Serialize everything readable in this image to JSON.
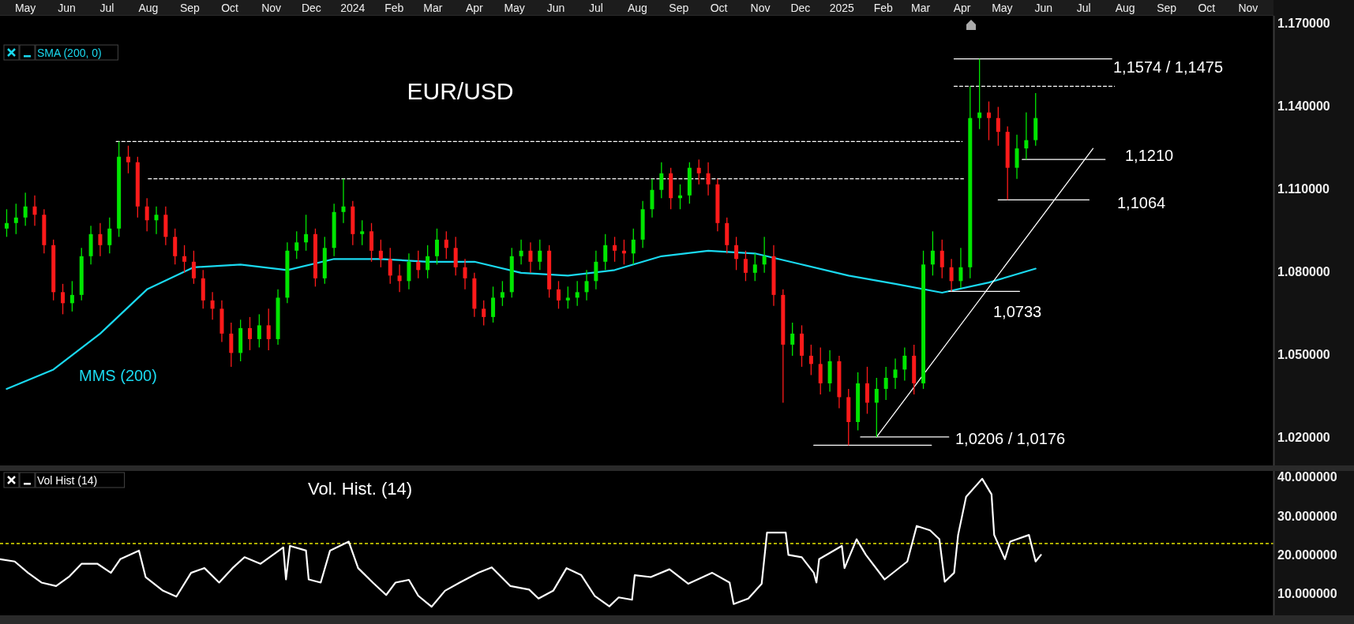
{
  "chart_data": [
    {
      "type": "candlestick",
      "title": "EUR/USD",
      "x": [
        "2023-04-17",
        "2023-04-24",
        "2023-05-01",
        "2023-05-08",
        "2023-05-15",
        "2023-05-22",
        "2023-05-29",
        "2023-06-05",
        "2023-06-12",
        "2023-06-19",
        "2023-06-26",
        "2023-07-03",
        "2023-07-10",
        "2023-07-17",
        "2023-07-24",
        "2023-07-31",
        "2023-08-07",
        "2023-08-14",
        "2023-08-21",
        "2023-08-28",
        "2023-09-04",
        "2023-09-11",
        "2023-09-18",
        "2023-09-25",
        "2023-10-02",
        "2023-10-09",
        "2023-10-16",
        "2023-10-23",
        "2023-10-30",
        "2023-11-06",
        "2023-11-13",
        "2023-11-20",
        "2023-11-27",
        "2023-12-04",
        "2023-12-11",
        "2023-12-18",
        "2023-12-25",
        "2024-01-01",
        "2024-01-08",
        "2024-01-15",
        "2024-01-22",
        "2024-01-29",
        "2024-02-05",
        "2024-02-12",
        "2024-02-19",
        "2024-02-26",
        "2024-03-04",
        "2024-03-11",
        "2024-03-18",
        "2024-03-25",
        "2024-04-01",
        "2024-04-08",
        "2024-04-15",
        "2024-04-22",
        "2024-04-29",
        "2024-05-06",
        "2024-05-13",
        "2024-05-20",
        "2024-05-27",
        "2024-06-03",
        "2024-06-10",
        "2024-06-17",
        "2024-06-24",
        "2024-07-01",
        "2024-07-08",
        "2024-07-15",
        "2024-07-22",
        "2024-07-29",
        "2024-08-05",
        "2024-08-12",
        "2024-08-19",
        "2024-08-26",
        "2024-09-02",
        "2024-09-09",
        "2024-09-16",
        "2024-09-23",
        "2024-09-30",
        "2024-10-07",
        "2024-10-14",
        "2024-10-21",
        "2024-10-28",
        "2024-11-04",
        "2024-11-11",
        "2024-11-18",
        "2024-11-25",
        "2024-12-02",
        "2024-12-09",
        "2024-12-16",
        "2024-12-23",
        "2024-12-30",
        "2025-01-06",
        "2025-01-13",
        "2025-01-20",
        "2025-01-27",
        "2025-02-03",
        "2025-02-10",
        "2025-02-17",
        "2025-02-24",
        "2025-03-03",
        "2025-03-10",
        "2025-03-17",
        "2025-03-24",
        "2025-03-31",
        "2025-04-07",
        "2025-04-14",
        "2025-04-21",
        "2025-04-28",
        "2025-05-05",
        "2025-05-12",
        "2025-05-19",
        "2025-05-26"
      ],
      "ohlc": [
        [
          1.096,
          1.103,
          1.093,
          1.098
        ],
        [
          1.098,
          1.105,
          1.094,
          1.1
        ],
        [
          1.1,
          1.109,
          1.097,
          1.104
        ],
        [
          1.104,
          1.108,
          1.097,
          1.101
        ],
        [
          1.101,
          1.103,
          1.087,
          1.09
        ],
        [
          1.09,
          1.092,
          1.07,
          1.073
        ],
        [
          1.073,
          1.076,
          1.065,
          1.069
        ],
        [
          1.069,
          1.077,
          1.066,
          1.072
        ],
        [
          1.072,
          1.089,
          1.07,
          1.086
        ],
        [
          1.086,
          1.097,
          1.083,
          1.094
        ],
        [
          1.094,
          1.098,
          1.086,
          1.09
        ],
        [
          1.09,
          1.1,
          1.087,
          1.096
        ],
        [
          1.096,
          1.1275,
          1.093,
          1.122
        ],
        [
          1.122,
          1.126,
          1.116,
          1.12
        ],
        [
          1.12,
          1.122,
          1.1,
          1.104
        ],
        [
          1.104,
          1.107,
          1.095,
          1.099
        ],
        [
          1.099,
          1.104,
          1.094,
          1.101
        ],
        [
          1.101,
          1.104,
          1.09,
          1.093
        ],
        [
          1.093,
          1.096,
          1.083,
          1.086
        ],
        [
          1.086,
          1.09,
          1.08,
          1.084
        ],
        [
          1.084,
          1.088,
          1.076,
          1.078
        ],
        [
          1.078,
          1.081,
          1.067,
          1.07
        ],
        [
          1.07,
          1.073,
          1.063,
          1.067
        ],
        [
          1.067,
          1.07,
          1.055,
          1.058
        ],
        [
          1.058,
          1.062,
          1.046,
          1.051
        ],
        [
          1.051,
          1.063,
          1.048,
          1.06
        ],
        [
          1.06,
          1.064,
          1.052,
          1.056
        ],
        [
          1.056,
          1.065,
          1.053,
          1.061
        ],
        [
          1.061,
          1.067,
          1.052,
          1.056
        ],
        [
          1.056,
          1.074,
          1.054,
          1.071
        ],
        [
          1.071,
          1.091,
          1.069,
          1.088
        ],
        [
          1.088,
          1.095,
          1.085,
          1.091
        ],
        [
          1.091,
          1.101,
          1.088,
          1.094
        ],
        [
          1.094,
          1.096,
          1.075,
          1.078
        ],
        [
          1.078,
          1.093,
          1.076,
          1.089
        ],
        [
          1.089,
          1.105,
          1.086,
          1.102
        ],
        [
          1.102,
          1.114,
          1.098,
          1.104
        ],
        [
          1.104,
          1.106,
          1.09,
          1.094
        ],
        [
          1.094,
          1.099,
          1.09,
          1.095
        ],
        [
          1.095,
          1.098,
          1.084,
          1.088
        ],
        [
          1.088,
          1.092,
          1.082,
          1.085
        ],
        [
          1.085,
          1.089,
          1.076,
          1.079
        ],
        [
          1.079,
          1.083,
          1.073,
          1.077
        ],
        [
          1.077,
          1.087,
          1.074,
          1.084
        ],
        [
          1.084,
          1.088,
          1.078,
          1.081
        ],
        [
          1.081,
          1.09,
          1.078,
          1.086
        ],
        [
          1.086,
          1.096,
          1.083,
          1.092
        ],
        [
          1.092,
          1.095,
          1.085,
          1.089
        ],
        [
          1.089,
          1.093,
          1.079,
          1.082
        ],
        [
          1.082,
          1.085,
          1.074,
          1.078
        ],
        [
          1.078,
          1.08,
          1.064,
          1.067
        ],
        [
          1.067,
          1.07,
          1.061,
          1.064
        ],
        [
          1.064,
          1.075,
          1.062,
          1.071
        ],
        [
          1.071,
          1.077,
          1.068,
          1.073
        ],
        [
          1.073,
          1.089,
          1.071,
          1.086
        ],
        [
          1.086,
          1.092,
          1.083,
          1.088
        ],
        [
          1.088,
          1.091,
          1.08,
          1.084
        ],
        [
          1.084,
          1.092,
          1.081,
          1.088
        ],
        [
          1.088,
          1.09,
          1.071,
          1.074
        ],
        [
          1.074,
          1.077,
          1.067,
          1.07
        ],
        [
          1.07,
          1.075,
          1.067,
          1.071
        ],
        [
          1.071,
          1.077,
          1.068,
          1.073
        ],
        [
          1.073,
          1.081,
          1.07,
          1.077
        ],
        [
          1.077,
          1.088,
          1.074,
          1.084
        ],
        [
          1.084,
          1.094,
          1.081,
          1.09
        ],
        [
          1.09,
          1.093,
          1.084,
          1.088
        ],
        [
          1.088,
          1.092,
          1.083,
          1.087
        ],
        [
          1.087,
          1.096,
          1.083,
          1.092
        ],
        [
          1.092,
          1.106,
          1.089,
          1.103
        ],
        [
          1.103,
          1.114,
          1.1,
          1.11
        ],
        [
          1.11,
          1.12,
          1.107,
          1.116
        ],
        [
          1.116,
          1.118,
          1.103,
          1.107
        ],
        [
          1.107,
          1.112,
          1.103,
          1.108
        ],
        [
          1.108,
          1.12,
          1.105,
          1.118
        ],
        [
          1.118,
          1.121,
          1.112,
          1.116
        ],
        [
          1.116,
          1.12,
          1.108,
          1.112
        ],
        [
          1.112,
          1.114,
          1.095,
          1.098
        ],
        [
          1.098,
          1.1,
          1.087,
          1.09
        ],
        [
          1.09,
          1.093,
          1.081,
          1.085
        ],
        [
          1.085,
          1.088,
          1.077,
          1.08
        ],
        [
          1.08,
          1.087,
          1.077,
          1.083
        ],
        [
          1.083,
          1.093,
          1.08,
          1.086
        ],
        [
          1.086,
          1.09,
          1.068,
          1.072
        ],
        [
          1.072,
          1.074,
          1.033,
          1.054
        ],
        [
          1.054,
          1.062,
          1.05,
          1.058
        ],
        [
          1.058,
          1.061,
          1.046,
          1.05
        ],
        [
          1.05,
          1.054,
          1.043,
          1.047
        ],
        [
          1.047,
          1.053,
          1.036,
          1.04
        ],
        [
          1.04,
          1.052,
          1.037,
          1.048
        ],
        [
          1.048,
          1.05,
          1.031,
          1.035
        ],
        [
          1.035,
          1.038,
          1.0176,
          1.026
        ],
        [
          1.026,
          1.044,
          1.023,
          1.04
        ],
        [
          1.04,
          1.046,
          1.029,
          1.033
        ],
        [
          1.033,
          1.042,
          1.0206,
          1.038
        ],
        [
          1.038,
          1.046,
          1.034,
          1.042
        ],
        [
          1.042,
          1.049,
          1.038,
          1.045
        ],
        [
          1.045,
          1.053,
          1.041,
          1.05
        ],
        [
          1.05,
          1.054,
          1.036,
          1.04
        ],
        [
          1.04,
          1.088,
          1.038,
          1.083
        ],
        [
          1.083,
          1.095,
          1.079,
          1.088
        ],
        [
          1.088,
          1.092,
          1.078,
          1.082
        ],
        [
          1.082,
          1.085,
          1.0733,
          1.077
        ],
        [
          1.077,
          1.089,
          1.0745,
          1.082
        ],
        [
          1.082,
          1.1475,
          1.078,
          1.136
        ],
        [
          1.136,
          1.1574,
          1.132,
          1.138
        ],
        [
          1.138,
          1.142,
          1.128,
          1.136
        ],
        [
          1.136,
          1.14,
          1.126,
          1.131
        ],
        [
          1.131,
          1.133,
          1.1064,
          1.118
        ],
        [
          1.118,
          1.13,
          1.114,
          1.125
        ],
        [
          1.125,
          1.138,
          1.121,
          1.128
        ],
        [
          1.128,
          1.145,
          1.126,
          1.136
        ]
      ],
      "series": [
        {
          "type": "line",
          "name": "SMA (200, 0)",
          "color": "#1ad9f0",
          "x": [
            "2023-04-17",
            "2023-05-22",
            "2023-06-26",
            "2023-07-31",
            "2023-09-04",
            "2023-10-09",
            "2023-11-13",
            "2023-12-18",
            "2024-01-22",
            "2024-02-26",
            "2024-04-01",
            "2024-05-06",
            "2024-06-10",
            "2024-07-15",
            "2024-08-19",
            "2024-09-23",
            "2024-10-28",
            "2024-12-02",
            "2025-01-06",
            "2025-02-10",
            "2025-03-17",
            "2025-04-21",
            "2025-05-26"
          ],
          "values": [
            1.038,
            1.045,
            1.058,
            1.074,
            1.082,
            1.083,
            1.081,
            1.085,
            1.085,
            1.084,
            1.084,
            1.08,
            1.079,
            1.081,
            1.086,
            1.088,
            1.087,
            1.083,
            1.079,
            1.076,
            1.0728,
            1.0765,
            1.0815
          ]
        },
        {
          "type": "line",
          "color": "#ffffff",
          "x": [
            "2025-03-26",
            "2025-07-22"
          ],
          "values": [
            1.1574,
            1.1574
          ]
        },
        {
          "type": "line",
          "color": "#ffffff",
          "line_style": "dashed",
          "x": [
            "2025-03-26",
            "2025-07-24"
          ],
          "values": [
            1.1475,
            1.1475
          ]
        },
        {
          "type": "line",
          "color": "#ffffff",
          "line_style": "dashed",
          "x": [
            "2023-07-08",
            "2025-04-01"
          ],
          "values": [
            1.1275,
            1.1275
          ]
        },
        {
          "type": "line",
          "color": "#ffffff",
          "line_style": "dashed",
          "x": [
            "2023-08-01",
            "2025-04-02"
          ],
          "values": [
            1.114,
            1.114
          ]
        },
        {
          "type": "line",
          "color": "#ffffff",
          "x": [
            "2025-05-16",
            "2025-07-17"
          ],
          "values": [
            1.121,
            1.121
          ]
        },
        {
          "type": "line",
          "color": "#ffffff",
          "x": [
            "2025-04-28",
            "2025-07-05"
          ],
          "values": [
            1.1064,
            1.1064
          ]
        },
        {
          "type": "line",
          "color": "#ffffff",
          "x": [
            "2025-03-22",
            "2025-05-14"
          ],
          "values": [
            1.0733,
            1.0733
          ]
        },
        {
          "type": "line",
          "color": "#ffffff",
          "x": [
            "2024-12-11",
            "2025-03-09"
          ],
          "values": [
            1.0176,
            1.0176
          ]
        },
        {
          "type": "line",
          "color": "#ffffff",
          "x": [
            "2025-01-15",
            "2025-03-22"
          ],
          "values": [
            1.0206,
            1.0206
          ]
        },
        {
          "type": "line",
          "color": "#ffffff",
          "x": [
            "2025-01-27",
            "2025-07-08"
          ],
          "values": [
            1.0206,
            1.125
          ]
        }
      ],
      "annotations": [
        "1,1574 / 1,1475",
        "1,1210",
        "1,1064",
        "1,0733",
        "1,0206 / 1,0176",
        "MMS (200)"
      ],
      "xlim": [
        "2023-04-12",
        "2025-11-20"
      ],
      "xticks": [
        {
          "value": "2023-05-01",
          "label": "May"
        },
        {
          "value": "2023-06-01",
          "label": "Jun"
        },
        {
          "value": "2023-07-01",
          "label": "Jul"
        },
        {
          "value": "2023-08-01",
          "label": "Aug"
        },
        {
          "value": "2023-09-01",
          "label": "Sep"
        },
        {
          "value": "2023-10-01",
          "label": "Oct"
        },
        {
          "value": "2023-11-01",
          "label": "Nov"
        },
        {
          "value": "2023-12-01",
          "label": "Dec"
        },
        {
          "value": "2024-01-01",
          "label": "2024"
        },
        {
          "value": "2024-02-01",
          "label": "Feb"
        },
        {
          "value": "2024-03-01",
          "label": "Mar"
        },
        {
          "value": "2024-04-01",
          "label": "Apr"
        },
        {
          "value": "2024-05-01",
          "label": "May"
        },
        {
          "value": "2024-06-01",
          "label": "Jun"
        },
        {
          "value": "2024-07-01",
          "label": "Jul"
        },
        {
          "value": "2024-08-01",
          "label": "Aug"
        },
        {
          "value": "2024-09-01",
          "label": "Sep"
        },
        {
          "value": "2024-10-01",
          "label": "Oct"
        },
        {
          "value": "2024-11-01",
          "label": "Nov"
        },
        {
          "value": "2024-12-01",
          "label": "Dec"
        },
        {
          "value": "2025-01-01",
          "label": "2025"
        },
        {
          "value": "2025-02-01",
          "label": "Feb"
        },
        {
          "value": "2025-03-01",
          "label": "Mar"
        },
        {
          "value": "2025-04-01",
          "label": "Apr"
        },
        {
          "value": "2025-05-01",
          "label": "May"
        },
        {
          "value": "2025-06-01",
          "label": "Jun"
        },
        {
          "value": "2025-07-01",
          "label": "Jul"
        },
        {
          "value": "2025-08-01",
          "label": "Aug"
        },
        {
          "value": "2025-09-01",
          "label": "Sep"
        },
        {
          "value": "2025-10-01",
          "label": "Oct"
        },
        {
          "value": "2025-11-01",
          "label": "Nov"
        }
      ],
      "ylim": [
        1.0103,
        1.173
      ],
      "yticks": [
        {
          "value": 1.17,
          "label": "1.170000"
        },
        {
          "value": 1.14,
          "label": "1.140000"
        },
        {
          "value": 1.11,
          "label": "1.110000"
        },
        {
          "value": 1.08,
          "label": "1.080000"
        },
        {
          "value": 1.05,
          "label": "1.050000"
        },
        {
          "value": 1.02,
          "label": "1.020000"
        }
      ],
      "legend": "top left"
    },
    {
      "type": "line",
      "title": "Vol. Hist. (14)",
      "series": [
        {
          "name": "Vol Hist (14)",
          "color": "#ffffff",
          "x": [
            "2023-04-12",
            "2023-04-23",
            "2023-05-03",
            "2023-05-13",
            "2023-05-24",
            "2023-06-03",
            "2023-06-12",
            "2023-06-24",
            "2023-07-04",
            "2023-07-11",
            "2023-07-25",
            "2023-07-30",
            "2023-08-12",
            "2023-08-22",
            "2023-09-02",
            "2023-09-12",
            "2023-09-23",
            "2023-10-03",
            "2023-10-12",
            "2023-10-24",
            "2023-11-10",
            "2023-11-12",
            "2023-11-15",
            "2023-11-27",
            "2023-11-29",
            "2023-12-08",
            "2023-12-15",
            "2023-12-29",
            "2024-01-05",
            "2024-01-16",
            "2024-01-26",
            "2024-02-02",
            "2024-02-12",
            "2024-02-19",
            "2024-02-29",
            "2024-03-10",
            "2024-03-21",
            "2024-04-04",
            "2024-04-14",
            "2024-04-28",
            "2024-05-12",
            "2024-05-19",
            "2024-05-30",
            "2024-06-09",
            "2024-06-20",
            "2024-06-30",
            "2024-07-11",
            "2024-07-18",
            "2024-07-28",
            "2024-07-30",
            "2024-08-11",
            "2024-08-25",
            "2024-09-08",
            "2024-09-26",
            "2024-10-09",
            "2024-10-12",
            "2024-10-23",
            "2024-11-02",
            "2024-11-06",
            "2024-11-20",
            "2024-11-22",
            "2024-12-02",
            "2024-12-11",
            "2024-12-13",
            "2024-12-15",
            "2025-01-01",
            "2025-01-03",
            "2025-01-12",
            "2025-01-19",
            "2025-02-02",
            "2025-02-19",
            "2025-02-26",
            "2025-03-08",
            "2025-03-15",
            "2025-03-19",
            "2025-03-26",
            "2025-03-29",
            "2025-04-04",
            "2025-04-16",
            "2025-04-23",
            "2025-04-25",
            "2025-05-03",
            "2025-05-07",
            "2025-05-21",
            "2025-05-26",
            "2025-05-30"
          ],
          "values": [
            19.2,
            18.6,
            15.7,
            13.2,
            12.3,
            14.8,
            18.0,
            18.0,
            15.7,
            19.2,
            21.4,
            14.6,
            11.1,
            9.6,
            15.7,
            16.9,
            13.2,
            16.9,
            19.7,
            18.0,
            22.2,
            14.0,
            22.6,
            21.4,
            14.0,
            13.2,
            21.4,
            23.7,
            16.9,
            13.2,
            10.0,
            13.2,
            13.9,
            9.8,
            7.0,
            11.1,
            13.2,
            15.7,
            17.1,
            12.3,
            11.4,
            9.1,
            11.1,
            16.9,
            15.1,
            9.8,
            7.1,
            9.4,
            8.8,
            15.1,
            14.6,
            16.6,
            12.9,
            15.7,
            13.2,
            7.7,
            9.1,
            12.9,
            26.0,
            26.0,
            20.3,
            19.7,
            15.7,
            13.2,
            19.2,
            22.6,
            16.9,
            24.3,
            20.3,
            14.0,
            18.6,
            27.7,
            26.6,
            24.3,
            13.4,
            15.7,
            25.4,
            35.2,
            39.8,
            35.8,
            25.4,
            19.2,
            23.7,
            25.4,
            18.6,
            20.3
          ]
        }
      ],
      "ref_lines": [
        {
          "axis": "y",
          "value": 23.2,
          "color": "#e6e600",
          "line_style": "dashed"
        }
      ],
      "xlim": [
        "2023-04-12",
        "2025-11-20"
      ],
      "ylim": [
        4.8,
        41.8
      ],
      "yticks": [
        {
          "value": 40,
          "label": "40.000000"
        },
        {
          "value": 30,
          "label": "30.000000"
        },
        {
          "value": 20,
          "label": "20.000000"
        },
        {
          "value": 10,
          "label": "10.000000"
        }
      ],
      "tick_labels": "y",
      "legend": "top left"
    }
  ]
}
